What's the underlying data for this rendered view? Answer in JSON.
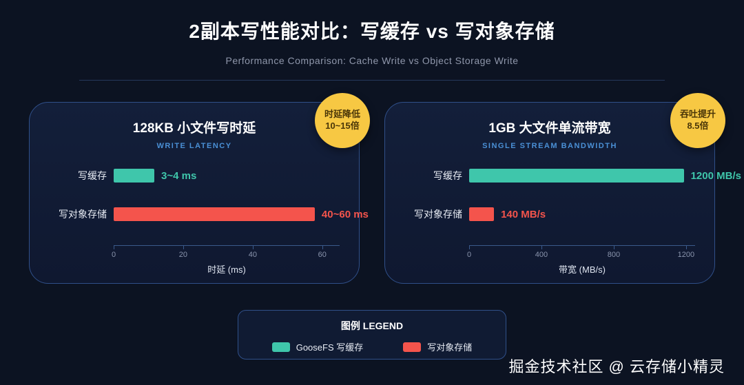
{
  "header": {
    "title": "2副本写性能对比：写缓存 vs 写对象存储",
    "subtitle": "Performance Comparison: Cache Write vs Object Storage Write"
  },
  "colors": {
    "background": "#0c1322",
    "panel_border": "#30508a",
    "cache_teal": "#3fc6ab",
    "object_red": "#f4544c",
    "badge_yellow": "#f7c843",
    "accent_blue": "#4a90d6"
  },
  "chart_data": [
    {
      "type": "bar",
      "orientation": "horizontal",
      "title": "128KB 小文件写时延",
      "subtitle": "WRITE LATENCY",
      "categories": [
        "写缓存",
        "写对象存储"
      ],
      "values": [
        3.5,
        50
      ],
      "value_labels": [
        "3~4 ms",
        "40~60 ms"
      ],
      "colors": [
        "#3fc6ab",
        "#f4544c"
      ],
      "bar_pct": [
        18,
        89
      ],
      "xticks": [
        0,
        20,
        40,
        60
      ],
      "xlim": [
        0,
        65
      ],
      "xlabel": "时延 (ms)",
      "grid": false,
      "badge_line1": "时延降低",
      "badge_line2": "10~15倍"
    },
    {
      "type": "bar",
      "orientation": "horizontal",
      "title": "1GB 大文件单流带宽",
      "subtitle": "SINGLE STREAM BANDWIDTH",
      "categories": [
        "写缓存",
        "写对象存储"
      ],
      "values": [
        1200,
        140
      ],
      "value_labels": [
        "1200 MB/s",
        "140 MB/s"
      ],
      "colors": [
        "#3fc6ab",
        "#f4544c"
      ],
      "bar_pct": [
        95,
        11
      ],
      "xticks": [
        0,
        400,
        800,
        1200
      ],
      "xlim": [
        0,
        1250
      ],
      "xlabel": "带宽 (MB/s)",
      "grid": false,
      "badge_line1": "吞吐提升",
      "badge_line2": "8.5倍"
    }
  ],
  "legend": {
    "title": "图例 LEGEND",
    "items": [
      {
        "label": "GooseFS 写缓存",
        "color": "#3fc6ab"
      },
      {
        "label": "写对象存储",
        "color": "#f4544c"
      }
    ]
  },
  "footer": {
    "watermark": "掘金技术社区 @ 云存储小精灵"
  }
}
